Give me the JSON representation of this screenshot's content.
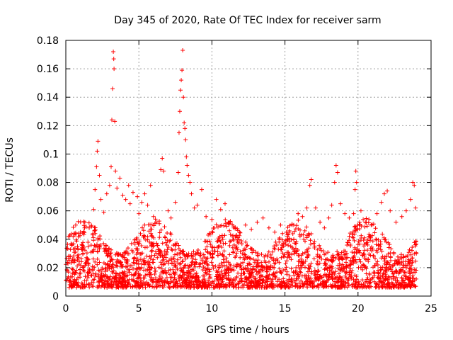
{
  "chart_data": {
    "type": "scatter",
    "title": "Day 345 of 2020, Rate Of TEC Index for receiver sarm",
    "xlabel": "GPS time / hours",
    "ylabel": "ROTI / TECUs",
    "xlim": [
      0,
      25
    ],
    "ylim": [
      0,
      0.18
    ],
    "xticks": [
      0,
      5,
      10,
      15,
      20,
      25
    ],
    "xtick_labels": [
      "0",
      "5",
      "10",
      "15",
      "20",
      "25"
    ],
    "yticks": [
      0,
      0.02,
      0.04,
      0.06,
      0.08,
      0.1,
      0.12,
      0.14,
      0.16,
      0.18
    ],
    "ytick_labels": [
      "0",
      "0.02",
      "0.04",
      "0.06",
      "0.08",
      "0.1",
      "0.12",
      "0.14",
      "0.16",
      "0.18"
    ],
    "grid": true,
    "marker": "+",
    "marker_color": "#ff0000",
    "series": [
      {
        "name": "ROTI",
        "points": [
          [
            0.1,
            0.018
          ],
          [
            0.3,
            0.028
          ],
          [
            0.5,
            0.042
          ],
          [
            0.8,
            0.035
          ],
          [
            1.0,
            0.045
          ],
          [
            1.3,
            0.052
          ],
          [
            1.6,
            0.048
          ],
          [
            1.9,
            0.061
          ],
          [
            2.0,
            0.075
          ],
          [
            2.1,
            0.091
          ],
          [
            2.15,
            0.102
          ],
          [
            2.2,
            0.109
          ],
          [
            2.3,
            0.085
          ],
          [
            2.4,
            0.068
          ],
          [
            2.6,
            0.059
          ],
          [
            2.8,
            0.072
          ],
          [
            3.0,
            0.078
          ],
          [
            3.1,
            0.091
          ],
          [
            3.15,
            0.124
          ],
          [
            3.2,
            0.146
          ],
          [
            3.25,
            0.172
          ],
          [
            3.28,
            0.167
          ],
          [
            3.3,
            0.16
          ],
          [
            3.35,
            0.123
          ],
          [
            3.4,
            0.088
          ],
          [
            3.5,
            0.076
          ],
          [
            3.7,
            0.083
          ],
          [
            3.9,
            0.071
          ],
          [
            4.1,
            0.068
          ],
          [
            4.3,
            0.078
          ],
          [
            4.4,
            0.065
          ],
          [
            4.6,
            0.073
          ],
          [
            4.9,
            0.07
          ],
          [
            5.0,
            0.058
          ],
          [
            5.2,
            0.066
          ],
          [
            5.4,
            0.072
          ],
          [
            5.6,
            0.064
          ],
          [
            5.8,
            0.078
          ],
          [
            6.0,
            0.056
          ],
          [
            6.2,
            0.052
          ],
          [
            6.5,
            0.089
          ],
          [
            6.6,
            0.097
          ],
          [
            6.7,
            0.088
          ],
          [
            7.0,
            0.06
          ],
          [
            7.2,
            0.055
          ],
          [
            7.5,
            0.066
          ],
          [
            7.7,
            0.087
          ],
          [
            7.75,
            0.115
          ],
          [
            7.8,
            0.13
          ],
          [
            7.85,
            0.145
          ],
          [
            7.9,
            0.152
          ],
          [
            7.95,
            0.159
          ],
          [
            8.0,
            0.173
          ],
          [
            8.05,
            0.14
          ],
          [
            8.1,
            0.122
          ],
          [
            8.15,
            0.118
          ],
          [
            8.2,
            0.11
          ],
          [
            8.25,
            0.098
          ],
          [
            8.3,
            0.092
          ],
          [
            8.4,
            0.085
          ],
          [
            8.5,
            0.08
          ],
          [
            8.6,
            0.072
          ],
          [
            8.8,
            0.062
          ],
          [
            9.0,
            0.064
          ],
          [
            9.3,
            0.075
          ],
          [
            9.6,
            0.056
          ],
          [
            10.0,
            0.054
          ],
          [
            10.3,
            0.068
          ],
          [
            10.6,
            0.061
          ],
          [
            10.9,
            0.065
          ],
          [
            11.2,
            0.052
          ],
          [
            11.5,
            0.048
          ],
          [
            11.9,
            0.045
          ],
          [
            12.3,
            0.05
          ],
          [
            12.7,
            0.047
          ],
          [
            13.1,
            0.052
          ],
          [
            13.5,
            0.055
          ],
          [
            13.9,
            0.048
          ],
          [
            14.3,
            0.045
          ],
          [
            14.7,
            0.05
          ],
          [
            15.0,
            0.038
          ],
          [
            15.3,
            0.045
          ],
          [
            15.6,
            0.05
          ],
          [
            15.9,
            0.058
          ],
          [
            16.2,
            0.056
          ],
          [
            16.5,
            0.062
          ],
          [
            16.7,
            0.078
          ],
          [
            16.8,
            0.082
          ],
          [
            17.1,
            0.062
          ],
          [
            17.4,
            0.052
          ],
          [
            17.7,
            0.048
          ],
          [
            18.0,
            0.055
          ],
          [
            18.2,
            0.064
          ],
          [
            18.4,
            0.08
          ],
          [
            18.5,
            0.092
          ],
          [
            18.6,
            0.087
          ],
          [
            18.8,
            0.065
          ],
          [
            19.1,
            0.058
          ],
          [
            19.4,
            0.055
          ],
          [
            19.7,
            0.058
          ],
          [
            19.8,
            0.075
          ],
          [
            19.85,
            0.088
          ],
          [
            19.9,
            0.08
          ],
          [
            20.2,
            0.06
          ],
          [
            20.5,
            0.052
          ],
          [
            20.9,
            0.05
          ],
          [
            21.3,
            0.058
          ],
          [
            21.6,
            0.066
          ],
          [
            21.8,
            0.072
          ],
          [
            22.0,
            0.074
          ],
          [
            22.2,
            0.06
          ],
          [
            22.6,
            0.052
          ],
          [
            23.0,
            0.056
          ],
          [
            23.3,
            0.06
          ],
          [
            23.6,
            0.068
          ],
          [
            23.75,
            0.08
          ],
          [
            23.85,
            0.078
          ],
          [
            23.95,
            0.062
          ]
        ]
      }
    ],
    "density_band": {
      "description": "Dense cluster of ROTI samples every interval across 0-24 h",
      "x_range": [
        0,
        24
      ],
      "baseline_range": [
        0.006,
        0.055
      ]
    }
  }
}
